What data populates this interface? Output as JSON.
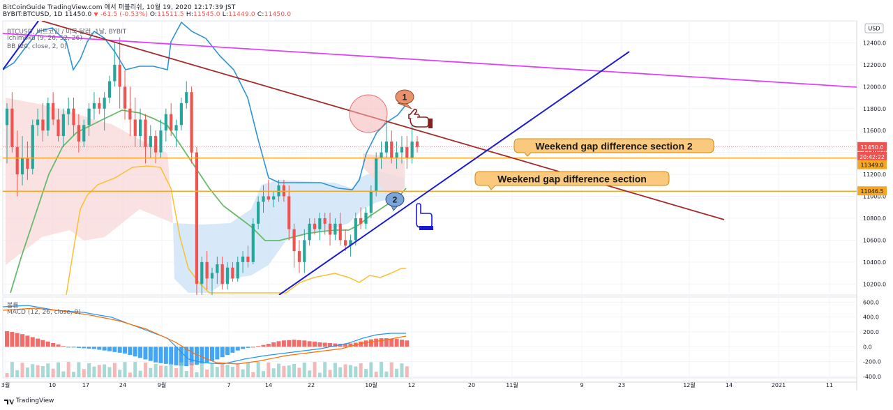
{
  "header": {
    "line1": "BitCoinGuide TradingView.com 에서 퍼블리쉬, 10월 19, 2020 12:17:39 JST",
    "symbol": "BYBIT:BTCUSD, 1D",
    "last": "11450.0",
    "change": "-61.5 (-0.53%)",
    "o_label": "O:",
    "o_value": "11511.5",
    "h_label": "H:",
    "h_value": "11545.0",
    "l_label": "L:",
    "l_value": "11449.0",
    "c_label": "C:",
    "c_value": "11450.0"
  },
  "legend": {
    "main": "BTCUSD, 비트코인 / 미국 달러, 1날, BYBIT",
    "ichimoku": "Ichimoku (9, 26, 52, 26)",
    "bb": "BB (20, close, 2, 0)",
    "volume": "볼륨",
    "macd": "MACD (12, 26, close, 9)"
  },
  "currency_button": "USD",
  "footer": {
    "brand": "TradingView"
  },
  "colors": {
    "up": "#26a69a",
    "down": "#ef5350",
    "bb": "#2e93d6",
    "tenkan": "#fbc02d",
    "kijun": "#66bb6a",
    "cloud_bull": "#d3e6f7",
    "cloud_bear": "#f8d8d8",
    "magenta": "#e040fb",
    "brown": "#a52a2a",
    "blue": "#1a1ad6",
    "orange_line": "#f5a623"
  },
  "chart_data": [
    {
      "type": "candlestick",
      "title": "BTCUSD, 1D, BYBIT",
      "x_tick_labels": [
        "3월",
        "10",
        "17",
        "24",
        "9월",
        "7",
        "14",
        "22",
        "10월",
        "12",
        "20",
        "11월",
        "9",
        "23",
        "12월",
        "14",
        "2021",
        "11"
      ],
      "y_tick_labels": [
        "12400.0",
        "12200.0",
        "12000.0",
        "11800.0",
        "11600.0",
        "11400.0",
        "11200.0",
        "11000.0",
        "10800.0",
        "10600.0",
        "10400.0",
        "10200.0"
      ],
      "ylim": [
        10100,
        12600
      ],
      "last_price_label": "11450.0",
      "countdown_label": "20:42:22",
      "level_labels": [
        "11349.0",
        "11046.5"
      ],
      "levels": [
        11349.0,
        11046.5
      ],
      "candles": [
        {
          "o": 11650,
          "h": 11850,
          "l": 11300,
          "c": 11800
        },
        {
          "o": 11800,
          "h": 11950,
          "l": 11400,
          "c": 11450
        },
        {
          "o": 11450,
          "h": 11600,
          "l": 11000,
          "c": 11200
        },
        {
          "o": 11200,
          "h": 11550,
          "l": 11100,
          "c": 11350
        },
        {
          "o": 11350,
          "h": 11500,
          "l": 11150,
          "c": 11250
        },
        {
          "o": 11250,
          "h": 11700,
          "l": 11200,
          "c": 11650
        },
        {
          "o": 11650,
          "h": 11800,
          "l": 11550,
          "c": 11700
        },
        {
          "o": 11700,
          "h": 11850,
          "l": 11500,
          "c": 11600
        },
        {
          "o": 11600,
          "h": 11900,
          "l": 11550,
          "c": 11850
        },
        {
          "o": 11850,
          "h": 11950,
          "l": 11650,
          "c": 11700
        },
        {
          "o": 11700,
          "h": 11800,
          "l": 11500,
          "c": 11550
        },
        {
          "o": 11550,
          "h": 11800,
          "l": 11450,
          "c": 11750
        },
        {
          "o": 11750,
          "h": 11900,
          "l": 11650,
          "c": 11800
        },
        {
          "o": 11800,
          "h": 11900,
          "l": 11550,
          "c": 11650
        },
        {
          "o": 11650,
          "h": 11750,
          "l": 11400,
          "c": 11500
        },
        {
          "o": 11500,
          "h": 11700,
          "l": 11450,
          "c": 11650
        },
        {
          "o": 11650,
          "h": 11850,
          "l": 11550,
          "c": 11800
        },
        {
          "o": 11800,
          "h": 11950,
          "l": 11700,
          "c": 11850
        },
        {
          "o": 11850,
          "h": 11900,
          "l": 11750,
          "c": 11800
        },
        {
          "o": 11800,
          "h": 11950,
          "l": 11600,
          "c": 11900
        },
        {
          "o": 11900,
          "h": 12100,
          "l": 11850,
          "c": 12050
        },
        {
          "o": 12050,
          "h": 12400,
          "l": 12000,
          "c": 12200
        },
        {
          "o": 12200,
          "h": 12450,
          "l": 11800,
          "c": 12000
        },
        {
          "o": 12000,
          "h": 12150,
          "l": 11700,
          "c": 11800
        },
        {
          "o": 11800,
          "h": 12000,
          "l": 11550,
          "c": 11700
        },
        {
          "o": 11700,
          "h": 11900,
          "l": 11450,
          "c": 11550
        },
        {
          "o": 11550,
          "h": 11800,
          "l": 11450,
          "c": 11700
        },
        {
          "o": 11700,
          "h": 11750,
          "l": 11300,
          "c": 11450
        },
        {
          "o": 11450,
          "h": 11650,
          "l": 11350,
          "c": 11550
        },
        {
          "o": 11550,
          "h": 11600,
          "l": 11300,
          "c": 11400
        },
        {
          "o": 11400,
          "h": 11700,
          "l": 11350,
          "c": 11600
        },
        {
          "o": 11600,
          "h": 11800,
          "l": 11500,
          "c": 11750
        },
        {
          "o": 11750,
          "h": 11850,
          "l": 11550,
          "c": 11600
        },
        {
          "o": 11600,
          "h": 11700,
          "l": 11450,
          "c": 11650
        },
        {
          "o": 11650,
          "h": 11900,
          "l": 11600,
          "c": 11850
        },
        {
          "o": 11850,
          "h": 12050,
          "l": 11800,
          "c": 11950
        },
        {
          "o": 11950,
          "h": 12000,
          "l": 11300,
          "c": 11400
        },
        {
          "o": 11400,
          "h": 11450,
          "l": 10100,
          "c": 10200
        },
        {
          "o": 10200,
          "h": 10450,
          "l": 10100,
          "c": 10400
        },
        {
          "o": 10400,
          "h": 10500,
          "l": 10150,
          "c": 10250
        },
        {
          "o": 10250,
          "h": 10350,
          "l": 10100,
          "c": 10300
        },
        {
          "o": 10300,
          "h": 10450,
          "l": 10200,
          "c": 10380
        },
        {
          "o": 10380,
          "h": 10450,
          "l": 10150,
          "c": 10200
        },
        {
          "o": 10200,
          "h": 10400,
          "l": 10150,
          "c": 10350
        },
        {
          "o": 10350,
          "h": 10400,
          "l": 10220,
          "c": 10250
        },
        {
          "o": 10250,
          "h": 10450,
          "l": 10220,
          "c": 10400
        },
        {
          "o": 10400,
          "h": 10500,
          "l": 10300,
          "c": 10450
        },
        {
          "o": 10450,
          "h": 10550,
          "l": 10350,
          "c": 10400
        },
        {
          "o": 10400,
          "h": 10800,
          "l": 10380,
          "c": 10750
        },
        {
          "o": 10750,
          "h": 11000,
          "l": 10700,
          "c": 10950
        },
        {
          "o": 10950,
          "h": 11100,
          "l": 10850,
          "c": 11000
        },
        {
          "o": 11000,
          "h": 11150,
          "l": 10950,
          "c": 10970
        },
        {
          "o": 10970,
          "h": 11050,
          "l": 10900,
          "c": 11000
        },
        {
          "o": 11000,
          "h": 11150,
          "l": 10950,
          "c": 11100
        },
        {
          "o": 11100,
          "h": 11150,
          "l": 10950,
          "c": 11000
        },
        {
          "o": 11000,
          "h": 11100,
          "l": 10600,
          "c": 10700
        },
        {
          "o": 10700,
          "h": 10750,
          "l": 10350,
          "c": 10500
        },
        {
          "o": 10500,
          "h": 10600,
          "l": 10300,
          "c": 10400
        },
        {
          "o": 10400,
          "h": 10700,
          "l": 10300,
          "c": 10600
        },
        {
          "o": 10600,
          "h": 10800,
          "l": 10550,
          "c": 10750
        },
        {
          "o": 10750,
          "h": 10800,
          "l": 10650,
          "c": 10700
        },
        {
          "o": 10700,
          "h": 10850,
          "l": 10600,
          "c": 10800
        },
        {
          "o": 10800,
          "h": 10850,
          "l": 10650,
          "c": 10750
        },
        {
          "o": 10750,
          "h": 10850,
          "l": 10550,
          "c": 10650
        },
        {
          "o": 10650,
          "h": 10800,
          "l": 10600,
          "c": 10750
        },
        {
          "o": 10750,
          "h": 10850,
          "l": 10550,
          "c": 10600
        },
        {
          "o": 10600,
          "h": 10700,
          "l": 10500,
          "c": 10550
        },
        {
          "o": 10550,
          "h": 10650,
          "l": 10450,
          "c": 10600
        },
        {
          "o": 10600,
          "h": 10850,
          "l": 10550,
          "c": 10800
        },
        {
          "o": 10800,
          "h": 10900,
          "l": 10700,
          "c": 10750
        },
        {
          "o": 10750,
          "h": 10900,
          "l": 10700,
          "c": 10850
        },
        {
          "o": 10850,
          "h": 11100,
          "l": 10800,
          "c": 11050
        },
        {
          "o": 11050,
          "h": 11400,
          "l": 11000,
          "c": 11350
        },
        {
          "o": 11350,
          "h": 11500,
          "l": 11250,
          "c": 11400
        },
        {
          "o": 11400,
          "h": 11700,
          "l": 11350,
          "c": 11500
        },
        {
          "o": 11500,
          "h": 11600,
          "l": 11300,
          "c": 11350
        },
        {
          "o": 11350,
          "h": 11500,
          "l": 11250,
          "c": 11400
        },
        {
          "o": 11400,
          "h": 11550,
          "l": 11300,
          "c": 11450
        },
        {
          "o": 11450,
          "h": 11550,
          "l": 11250,
          "c": 11350
        },
        {
          "o": 11350,
          "h": 11650,
          "l": 11300,
          "c": 11500
        },
        {
          "o": 11500,
          "h": 11550,
          "l": 11400,
          "c": 11450
        }
      ]
    },
    {
      "type": "bar",
      "title": "MACD (12, 26, close, 9)",
      "y_tick_labels": [
        "600.0",
        "400.0",
        "200.0",
        "0.0",
        "-200.0",
        "-400.0"
      ],
      "ylim": [
        -400,
        650
      ],
      "histogram": [
        210,
        200,
        185,
        170,
        150,
        130,
        110,
        90,
        70,
        50,
        30,
        10,
        -5,
        -10,
        -15,
        -20,
        -25,
        -30,
        -40,
        -50,
        -60,
        -70,
        -80,
        -90,
        -110,
        -130,
        -150,
        -170,
        -190,
        -210,
        -220,
        -230,
        -240,
        -250,
        -255,
        -260,
        -250,
        -240,
        -225,
        -210,
        -190,
        -170,
        -140,
        -110,
        -80,
        -50,
        -30,
        -15,
        0,
        10,
        25,
        40,
        60,
        75,
        85,
        90,
        95,
        90,
        85,
        75,
        70,
        60,
        55,
        50,
        45,
        40,
        40,
        45,
        55,
        70,
        85,
        100,
        110,
        115,
        115,
        110,
        105,
        95,
        85
      ]
    }
  ],
  "annotations": {
    "label1": "Weekend gap difference section 2",
    "label2": "Weekend gap difference section",
    "marker1": "1",
    "marker2": "2"
  }
}
